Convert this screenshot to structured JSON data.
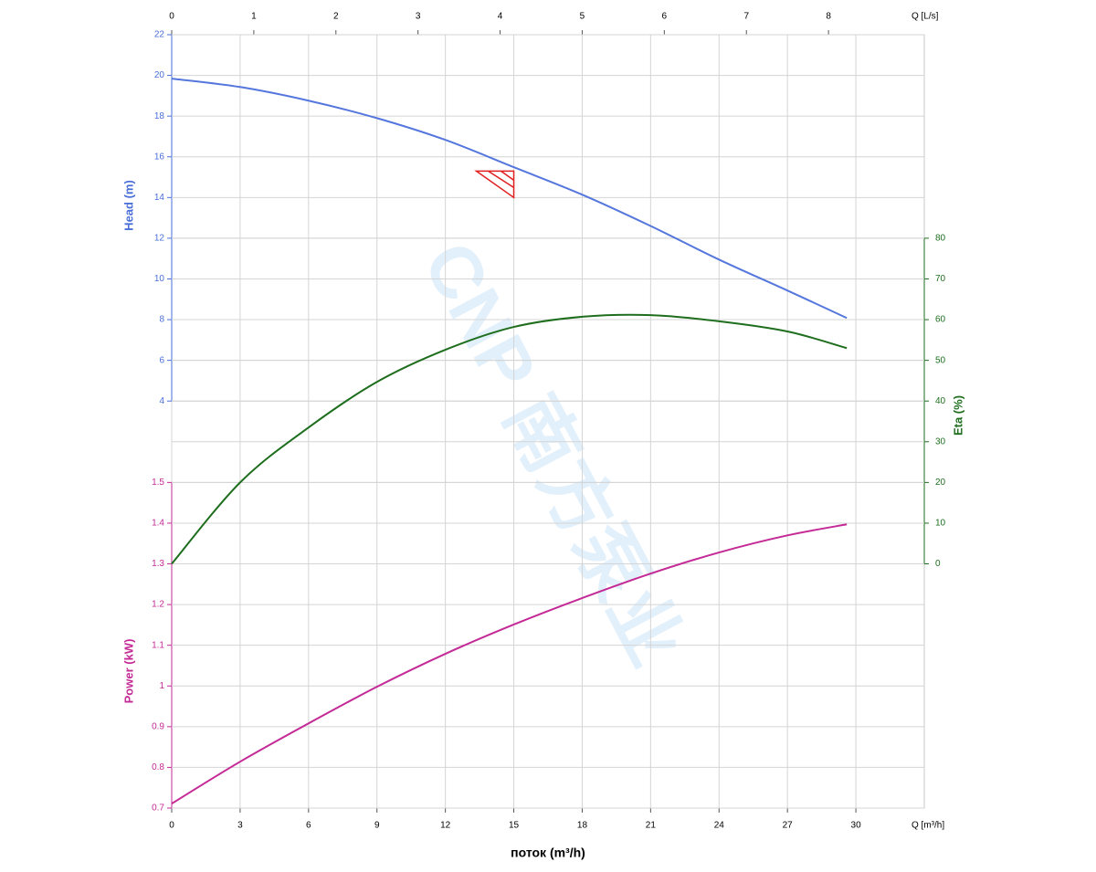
{
  "chart_data": {
    "type": "line",
    "x_title": "поток (m³/h)",
    "x_unit_label": "Q [m³/h]",
    "x2_unit_label": "Q [L/s]",
    "x": [
      0,
      3,
      6,
      9,
      12,
      15,
      18,
      21,
      24,
      27,
      29.6
    ],
    "xlim": [
      0,
      33
    ],
    "xticks": [
      0,
      3,
      6,
      9,
      12,
      15,
      18,
      21,
      24,
      27,
      30
    ],
    "x2lim": [
      0,
      9.1667
    ],
    "x2ticks": [
      0,
      1,
      2,
      3,
      4,
      5,
      6,
      7,
      8
    ],
    "y_title": "Head (m)",
    "ylim": [
      4,
      22
    ],
    "yticks": [
      4,
      6,
      8,
      10,
      12,
      14,
      16,
      18,
      20,
      22
    ],
    "y2_title": "Eta (%)",
    "y2lim": [
      0,
      80
    ],
    "y2ticks": [
      0,
      10,
      20,
      30,
      40,
      50,
      60,
      70,
      80
    ],
    "y3_title": "Power (kW)",
    "y3lim": [
      0.7,
      1.5
    ],
    "y3ticks": [
      0.7,
      0.8,
      0.9,
      1,
      1.1,
      1.2,
      1.3,
      1.4,
      1.5
    ],
    "grid": true,
    "series": [
      {
        "axis": "y",
        "color": "#5577dd",
        "values": [
          19.84,
          19.43,
          18.76,
          17.9,
          16.83,
          15.49,
          14.14,
          12.6,
          10.95,
          9.43,
          8.08
        ]
      },
      {
        "axis": "y2",
        "color": "#1e6e1e",
        "values": [
          0,
          20,
          33.5,
          44.7,
          52.6,
          58.2,
          60.7,
          61.1,
          59.6,
          57.1,
          53
        ]
      },
      {
        "axis": "y3",
        "color": "#c42a96",
        "values": [
          0.711,
          0.814,
          0.908,
          0.998,
          1.079,
          1.151,
          1.216,
          1.276,
          1.328,
          1.37,
          1.397
        ]
      }
    ],
    "duty_point": {
      "x": 15,
      "y": 15.3,
      "color": "#e02020"
    },
    "watermark": "CNP 南方泵业"
  }
}
